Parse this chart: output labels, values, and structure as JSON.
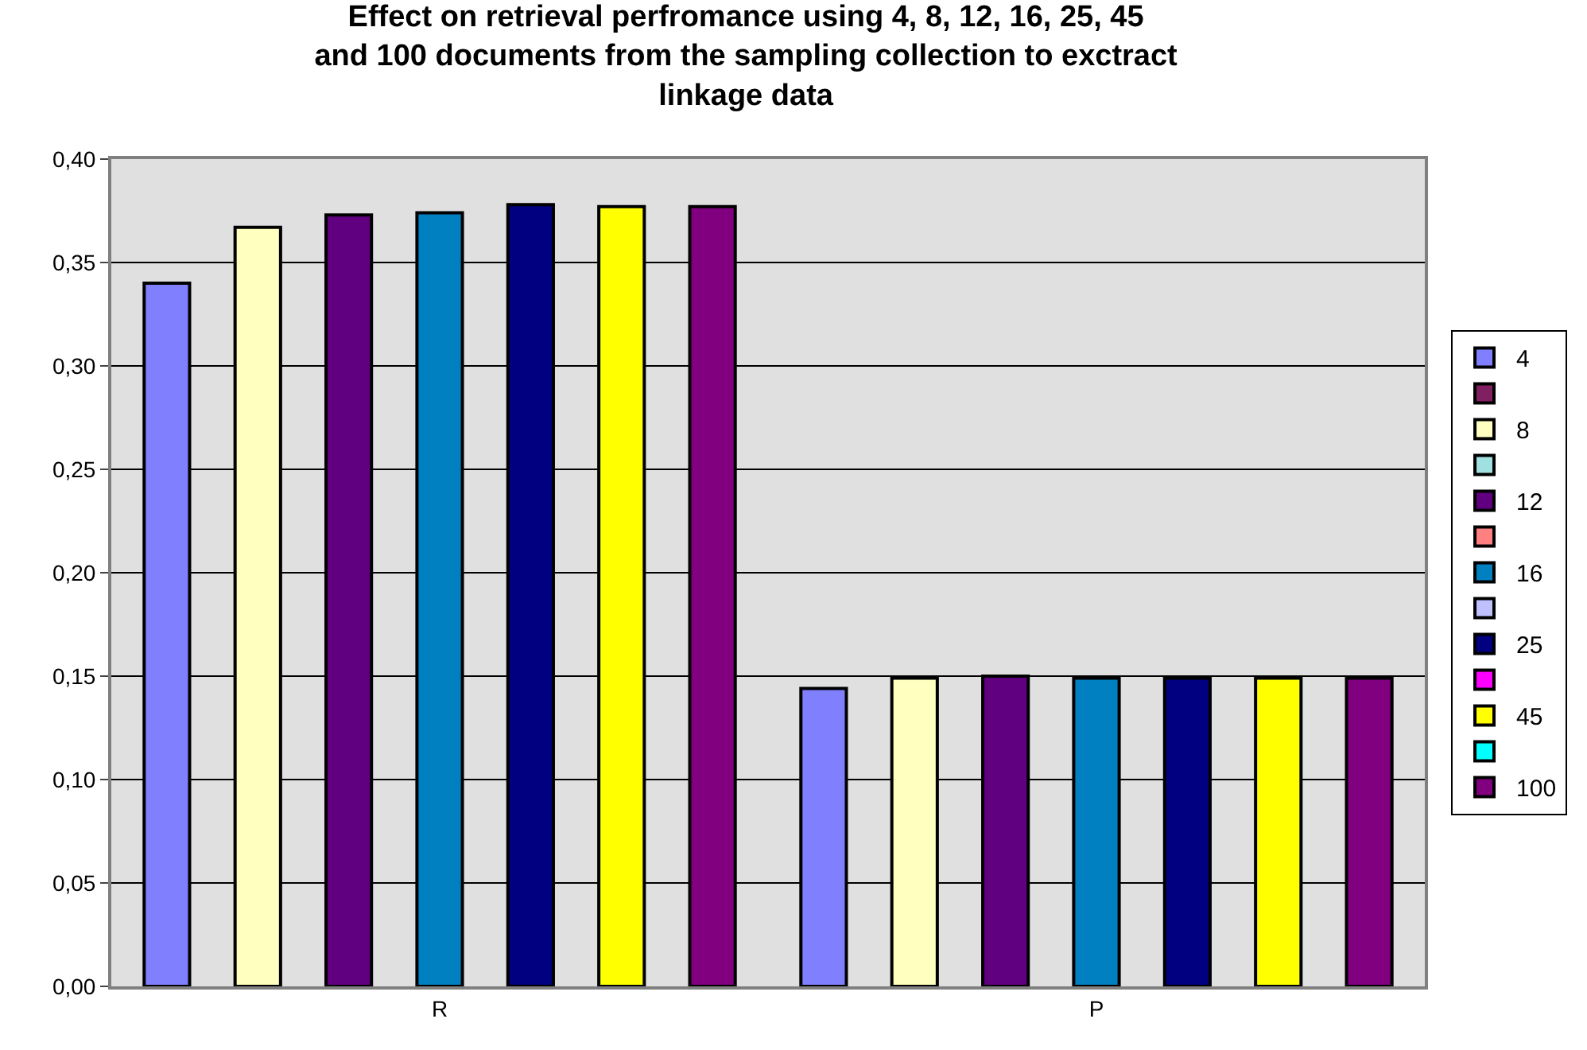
{
  "chart_data": {
    "type": "bar",
    "title": "Effect on retrieval perfromance using 4, 8, 12, 16, 25, 45 and 100 documents from the sampling collection to exctract linkage data",
    "categories": [
      "R",
      "P"
    ],
    "series": [
      {
        "name": "4",
        "color": "#8080ff",
        "values": [
          0.34,
          0.144
        ]
      },
      {
        "color": "#802060",
        "values": [
          null,
          null
        ]
      },
      {
        "name": "8",
        "color": "#ffffc0",
        "values": [
          0.367,
          0.149
        ]
      },
      {
        "color": "#a0e0e0",
        "values": [
          null,
          null
        ]
      },
      {
        "name": "12",
        "color": "#600080",
        "values": [
          0.373,
          0.15
        ]
      },
      {
        "color": "#ff8080",
        "values": [
          null,
          null
        ]
      },
      {
        "name": "16",
        "color": "#0080c0",
        "values": [
          0.374,
          0.149
        ]
      },
      {
        "color": "#c0c0ff",
        "values": [
          null,
          null
        ]
      },
      {
        "name": "25",
        "color": "#000080",
        "values": [
          0.378,
          0.149
        ]
      },
      {
        "color": "#ff00ff",
        "values": [
          null,
          null
        ]
      },
      {
        "name": "45",
        "color": "#ffff00",
        "values": [
          0.377,
          0.149
        ]
      },
      {
        "color": "#00ffff",
        "values": [
          null,
          null
        ]
      },
      {
        "name": "100",
        "color": "#800080",
        "values": [
          0.377,
          0.149
        ]
      }
    ],
    "ylim": [
      0,
      0.4
    ],
    "yticks": [
      {
        "value": 0,
        "label": "0,00"
      },
      {
        "value": 0.05,
        "label": "0,05"
      },
      {
        "value": 0.1,
        "label": "0,10"
      },
      {
        "value": 0.15,
        "label": "0,15"
      },
      {
        "value": 0.2,
        "label": "0,20"
      },
      {
        "value": 0.25,
        "label": "0,25"
      },
      {
        "value": 0.3,
        "label": "0,30"
      },
      {
        "value": 0.35,
        "label": "0,35"
      },
      {
        "value": 0.4,
        "label": "0,40"
      }
    ],
    "grid": "y",
    "legend": "right"
  }
}
